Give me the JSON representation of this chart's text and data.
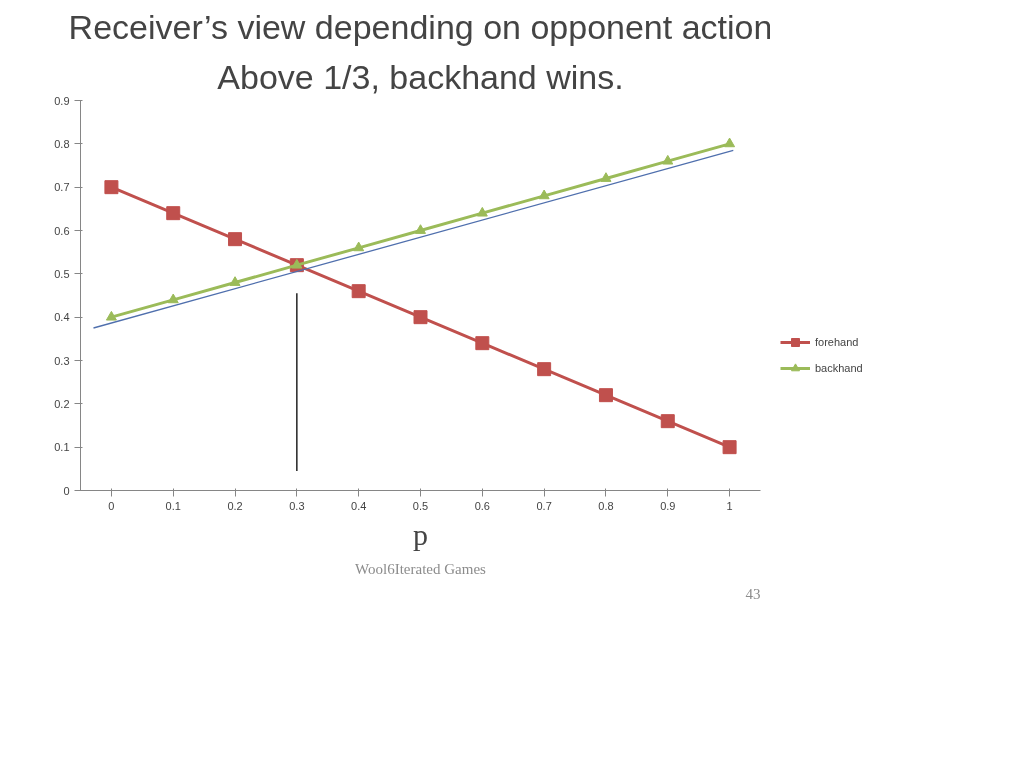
{
  "chart_data": {
    "type": "line",
    "title": "Receiver’s view depending on opponent action",
    "subtitle": "Above 1/3, backhand wins.",
    "xlabel": "p",
    "x": [
      0,
      0.1,
      0.2,
      0.3,
      0.4,
      0.5,
      0.6,
      0.7,
      0.8,
      0.9,
      1
    ],
    "series": [
      {
        "name": "forehand",
        "color": "#c0504d",
        "marker": "square",
        "values": [
          0.7,
          0.64,
          0.58,
          0.52,
          0.46,
          0.4,
          0.34,
          0.28,
          0.22,
          0.16,
          0.1
        ]
      },
      {
        "name": "backhand",
        "color": "#9bbb59",
        "marker": "triangle",
        "values": [
          0.4,
          0.44,
          0.48,
          0.52,
          0.56,
          0.6,
          0.64,
          0.68,
          0.72,
          0.76,
          0.8
        ]
      },
      {
        "type": "line",
        "color": "#4f6fad",
        "marker": "none",
        "x": [
          -0.029,
          1.006
        ],
        "values": [
          0.375,
          0.785
        ]
      },
      {
        "type": "line",
        "color": "#000000",
        "marker": "none",
        "x": [
          0.3,
          0.3
        ],
        "values": [
          0.045,
          0.455
        ]
      }
    ],
    "xlim": [
      -0.05,
      1.05
    ],
    "xticks": [
      0,
      0.1,
      0.2,
      0.3,
      0.4,
      0.5,
      0.6,
      0.7,
      0.8,
      0.9,
      1
    ],
    "ylim": [
      0,
      0.9
    ],
    "yticks": [
      0,
      0.1,
      0.2,
      0.3,
      0.4,
      0.5,
      0.6,
      0.7,
      0.8,
      0.9
    ],
    "grid": false,
    "legend": "right",
    "annotations": [
      "Wool6Iterated Games",
      "43"
    ]
  }
}
